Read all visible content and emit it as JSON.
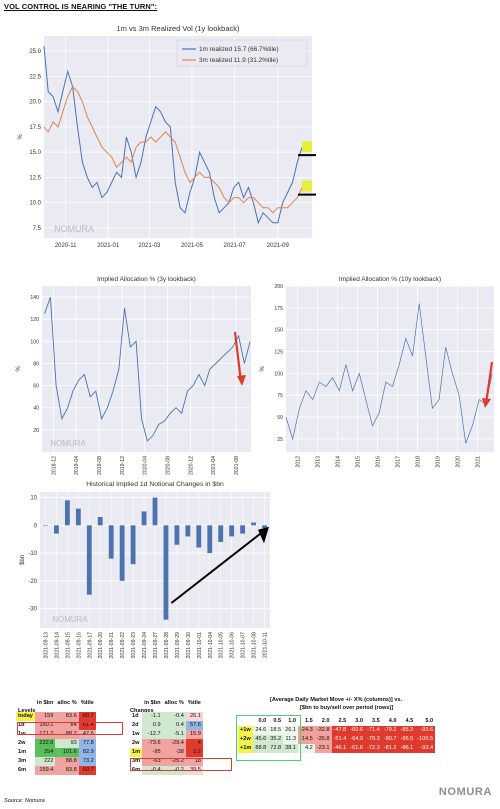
{
  "header": {
    "title": "VOL CONTROL IS NEARING \"THE TURN\":"
  },
  "source": "Source: Nomura",
  "logo": "NOMURA",
  "colors": {
    "blue": "#4c72b0",
    "orange": "#dd8452",
    "bar": "#4c72b0",
    "bg": "#eaeaf2",
    "red": "#e03a2e",
    "green": "#5bbf5b"
  },
  "chart_data": [
    {
      "type": "line",
      "title": "1m vs 3m Realized Vol (1y lookback)",
      "ylabel": "%",
      "ylim": [
        6.5,
        26.5
      ],
      "yticks": [
        7.5,
        10.0,
        12.5,
        15.0,
        17.5,
        20.0,
        22.5,
        25.0
      ],
      "xticks": [
        "2020-11",
        "2021-01",
        "2021-03",
        "2021-05",
        "2021-07",
        "2021-09"
      ],
      "xlim": [
        "2020-10-01",
        "2021-10-20"
      ],
      "legend_position": "top-right",
      "grid": true,
      "series": [
        {
          "name": "1m realized 15.7 (66.7%tile)",
          "color": "#4c72b0",
          "x": [
            "2020-10-01",
            "2020-10-07",
            "2020-10-14",
            "2020-10-21",
            "2020-10-28",
            "2020-11-04",
            "2020-11-11",
            "2020-11-18",
            "2020-11-25",
            "2020-12-02",
            "2020-12-09",
            "2020-12-16",
            "2020-12-23",
            "2020-12-30",
            "2021-01-06",
            "2021-01-13",
            "2021-01-20",
            "2021-01-27",
            "2021-02-03",
            "2021-02-10",
            "2021-02-17",
            "2021-02-24",
            "2021-03-03",
            "2021-03-10",
            "2021-03-17",
            "2021-03-24",
            "2021-03-31",
            "2021-04-07",
            "2021-04-14",
            "2021-04-21",
            "2021-04-28",
            "2021-05-05",
            "2021-05-12",
            "2021-05-19",
            "2021-05-26",
            "2021-06-02",
            "2021-06-09",
            "2021-06-16",
            "2021-06-23",
            "2021-06-30",
            "2021-07-07",
            "2021-07-14",
            "2021-07-21",
            "2021-07-28",
            "2021-08-04",
            "2021-08-11",
            "2021-08-18",
            "2021-08-25",
            "2021-09-01",
            "2021-09-08",
            "2021-09-15",
            "2021-09-22",
            "2021-09-29",
            "2021-10-06",
            "2021-10-13"
          ],
          "y": [
            25.5,
            21.0,
            20.5,
            19.0,
            21.0,
            23.0,
            21.5,
            17.5,
            14.0,
            12.5,
            11.5,
            12.0,
            10.5,
            11.0,
            12.0,
            13.0,
            12.5,
            16.5,
            15.0,
            12.5,
            14.0,
            16.5,
            18.0,
            19.5,
            19.0,
            18.0,
            17.5,
            12.0,
            9.5,
            9.0,
            11.0,
            12.5,
            15.0,
            14.0,
            13.0,
            10.5,
            9.0,
            9.5,
            10.0,
            11.5,
            12.0,
            10.5,
            11.5,
            10.0,
            8.0,
            9.0,
            8.5,
            8.0,
            8.0,
            10.0,
            11.0,
            12.0,
            14.0,
            15.5,
            15.7
          ]
        },
        {
          "name": "3m realized 11.9 (31.2%tile)",
          "color": "#dd8452",
          "x": [
            "2020-10-01",
            "2020-10-07",
            "2020-10-14",
            "2020-10-21",
            "2020-10-28",
            "2020-11-04",
            "2020-11-11",
            "2020-11-18",
            "2020-11-25",
            "2020-12-02",
            "2020-12-09",
            "2020-12-16",
            "2020-12-23",
            "2020-12-30",
            "2021-01-06",
            "2021-01-13",
            "2021-01-20",
            "2021-01-27",
            "2021-02-03",
            "2021-02-10",
            "2021-02-17",
            "2021-02-24",
            "2021-03-03",
            "2021-03-10",
            "2021-03-17",
            "2021-03-24",
            "2021-03-31",
            "2021-04-07",
            "2021-04-14",
            "2021-04-21",
            "2021-04-28",
            "2021-05-05",
            "2021-05-12",
            "2021-05-19",
            "2021-05-26",
            "2021-06-02",
            "2021-06-09",
            "2021-06-16",
            "2021-06-23",
            "2021-06-30",
            "2021-07-07",
            "2021-07-14",
            "2021-07-21",
            "2021-07-28",
            "2021-08-04",
            "2021-08-11",
            "2021-08-18",
            "2021-08-25",
            "2021-09-01",
            "2021-09-08",
            "2021-09-15",
            "2021-09-22",
            "2021-09-29",
            "2021-10-06",
            "2021-10-13"
          ],
          "y": [
            17.5,
            17.0,
            18.0,
            17.5,
            19.0,
            20.5,
            21.5,
            21.0,
            20.0,
            18.5,
            17.5,
            16.5,
            15.5,
            15.0,
            14.5,
            13.5,
            14.0,
            14.5,
            14.0,
            15.5,
            16.0,
            16.0,
            16.5,
            16.0,
            16.5,
            17.0,
            16.5,
            16.0,
            14.5,
            13.0,
            12.0,
            12.5,
            13.0,
            12.5,
            12.5,
            12.0,
            11.5,
            10.5,
            10.0,
            10.5,
            10.5,
            10.0,
            10.5,
            10.5,
            10.0,
            9.5,
            9.5,
            9.0,
            9.5,
            9.5,
            9.5,
            10.0,
            10.5,
            11.5,
            11.9
          ]
        }
      ],
      "annotations": [
        {
          "type": "marker-bar",
          "y": 14.7
        },
        {
          "type": "marker-bar",
          "y": 10.8
        }
      ]
    },
    {
      "type": "line",
      "title": "Implied Allocation % (3y lookback)",
      "ylabel": "%",
      "ylim": [
        0,
        150
      ],
      "yticks": [
        20,
        40,
        60,
        80,
        100,
        120,
        140
      ],
      "xticks": [
        "2018-12",
        "2019-04",
        "2019-08",
        "2019-12",
        "2020-04",
        "2020-08",
        "2020-12",
        "2021-04",
        "2021-08"
      ],
      "xlim": [
        "2018-10-01",
        "2021-10-20"
      ],
      "grid": true,
      "series": [
        {
          "name": "",
          "color": "#4c72b0",
          "x": [
            "2018-10-15",
            "2018-11-15",
            "2018-12-15",
            "2019-01-15",
            "2019-02-15",
            "2019-03-15",
            "2019-04-15",
            "2019-05-15",
            "2019-06-15",
            "2019-07-15",
            "2019-08-15",
            "2019-09-15",
            "2019-10-15",
            "2019-11-15",
            "2019-12-15",
            "2020-01-15",
            "2020-02-15",
            "2020-03-15",
            "2020-04-15",
            "2020-05-15",
            "2020-06-15",
            "2020-07-15",
            "2020-08-15",
            "2020-09-15",
            "2020-10-15",
            "2020-11-15",
            "2020-12-15",
            "2021-01-15",
            "2021-02-15",
            "2021-03-15",
            "2021-04-15",
            "2021-05-15",
            "2021-06-15",
            "2021-07-15",
            "2021-08-15",
            "2021-09-15",
            "2021-10-15"
          ],
          "y": [
            125,
            140,
            60,
            30,
            40,
            55,
            65,
            70,
            50,
            55,
            30,
            40,
            55,
            75,
            130,
            95,
            100,
            30,
            10,
            15,
            25,
            28,
            35,
            40,
            35,
            55,
            60,
            70,
            60,
            75,
            80,
            85,
            90,
            95,
            105,
            80,
            100
          ]
        }
      ]
    },
    {
      "type": "line",
      "title": "Implied Allocation % (10y lookback)",
      "ylabel": "%",
      "ylim": [
        10,
        200
      ],
      "yticks": [
        25,
        50,
        75,
        100,
        125,
        150,
        175,
        200
      ],
      "xticks": [
        "2012",
        "2013",
        "2014",
        "2015",
        "2016",
        "2017",
        "2018",
        "2019",
        "2020",
        "2021"
      ],
      "xlim": [
        "2011-06-01",
        "2021-11-01"
      ],
      "grid": true,
      "series": [
        {
          "name": "",
          "color": "#4c72b0",
          "x": [
            "2011-06-01",
            "2011-10-01",
            "2012-02-01",
            "2012-06-01",
            "2012-10-01",
            "2013-02-01",
            "2013-06-01",
            "2013-10-01",
            "2014-02-01",
            "2014-06-01",
            "2014-10-01",
            "2015-02-01",
            "2015-06-01",
            "2015-10-01",
            "2016-02-01",
            "2016-06-01",
            "2016-10-01",
            "2017-02-01",
            "2017-06-01",
            "2017-10-01",
            "2018-02-01",
            "2018-06-01",
            "2018-10-01",
            "2019-02-01",
            "2019-06-01",
            "2019-10-01",
            "2020-02-01",
            "2020-06-01",
            "2020-10-01",
            "2021-02-01",
            "2021-06-01",
            "2021-10-01"
          ],
          "y": [
            50,
            25,
            60,
            80,
            70,
            90,
            85,
            95,
            80,
            110,
            80,
            100,
            70,
            40,
            55,
            90,
            85,
            110,
            140,
            120,
            180,
            120,
            60,
            70,
            130,
            100,
            75,
            20,
            40,
            70,
            65,
            100
          ]
        }
      ]
    },
    {
      "type": "bar",
      "title": "Historical Implied 1d Notional Changes in $bn",
      "ylabel": "$bn",
      "ylim": [
        -37,
        12
      ],
      "yticks": [
        -30,
        -20,
        -10,
        0,
        10
      ],
      "categories": [
        "2021-09-13",
        "2021-09-14",
        "2021-09-15",
        "2021-09-16",
        "2021-09-17",
        "2021-09-20",
        "2021-09-21",
        "2021-09-22",
        "2021-09-23",
        "2021-09-24",
        "2021-09-27",
        "2021-09-28",
        "2021-09-29",
        "2021-09-30",
        "2021-10-01",
        "2021-10-04",
        "2021-10-05",
        "2021-10-06",
        "2021-10-07",
        "2021-10-08",
        "2021-10-11"
      ],
      "values": [
        0,
        -3,
        9,
        6,
        -25,
        3,
        -12,
        -20,
        -14,
        5,
        10,
        -34,
        -7,
        -4,
        -8,
        -10,
        -6,
        -4,
        -3,
        1,
        -1
      ],
      "grid": true
    }
  ],
  "levels": {
    "title": "Levels",
    "cols": [
      "in $bn",
      "alloc %",
      "%tile"
    ],
    "rows": [
      {
        "label": "today",
        "v": [
          "159",
          "83.6",
          "60.7"
        ],
        "c": [
          "#f0a3a0",
          "#f0a3a0",
          "#e03a2e"
        ]
      },
      {
        "label": "1d",
        "v": [
          "160.1",
          "84",
          "61.4"
        ],
        "c": [
          "#f0a3a0",
          "#f0a3a0",
          "#e03a2e"
        ]
      },
      {
        "label": "1w",
        "v": [
          "171.7",
          "88.7",
          "47.6"
        ],
        "c": [
          "#f0a3a0",
          "#f0a3a0",
          "#e8b0ae"
        ]
      },
      {
        "label": "2w",
        "v": [
          "232.6",
          "93",
          "77.8"
        ],
        "c": [
          "#5bbf5b",
          "#cfe8cf",
          "#8fb6e6"
        ]
      },
      {
        "label": "1m",
        "v": [
          "254",
          "101.6",
          "82.9"
        ],
        "c": [
          "#5bbf5b",
          "#5bbf5b",
          "#8fb6e6"
        ]
      },
      {
        "label": "3m",
        "v": [
          "222",
          "88.8",
          "73.2"
        ],
        "c": [
          "#cfe8cf",
          "#f0a3a0",
          "#8fb6e6"
        ]
      },
      {
        "label": "6m",
        "v": [
          "159.4",
          "83.8",
          "60.7"
        ],
        "c": [
          "#f0a3a0",
          "#f0a3a0",
          "#e03a2e"
        ]
      }
    ]
  },
  "changes": {
    "title": "Changes",
    "cols": [
      "in $bn",
      "alloc %",
      "%tile"
    ],
    "rows": [
      {
        "label": "1d",
        "v": [
          "-1.1",
          "-0.4",
          "26.1"
        ],
        "c": [
          "#cfe8cf",
          "#cfe8cf",
          "#f7d6d5"
        ]
      },
      {
        "label": "2d",
        "v": [
          "0.9",
          "0.4",
          "57.6"
        ],
        "c": [
          "#cfe8cf",
          "#cfe8cf",
          "#8fb6e6"
        ]
      },
      {
        "label": "1w",
        "v": [
          "-12.7",
          "-5.1",
          "15.9"
        ],
        "c": [
          "#cfe8cf",
          "#cfe8cf",
          "#f0a3a0"
        ]
      },
      {
        "label": "2w",
        "v": [
          "-73.6",
          "-29.4",
          "4"
        ],
        "c": [
          "#f0a3a0",
          "#f0a3a0",
          "#e03a2e"
        ]
      },
      {
        "label": "1m",
        "v": [
          "-95",
          "-38",
          "3.2"
        ],
        "c": [
          "#f0a3a0",
          "#f0a3a0",
          "#e03a2e"
        ]
      },
      {
        "label": "3m",
        "v": [
          "-63",
          "-25.2",
          "18"
        ],
        "c": [
          "#f0a3a0",
          "#f0a3a0",
          "#f0a3a0"
        ]
      },
      {
        "label": "6m",
        "v": [
          "-0.4",
          "-0.2",
          "39.5"
        ],
        "c": [
          "#cfe8cf",
          "#cfe8cf",
          "#f7d6d5"
        ]
      }
    ]
  },
  "matrix": {
    "title": "[Average Daily Market Move +/- X% (columns)] vs.",
    "subtitle": "[$bn to buy/sell over period (rows)]",
    "cols": [
      "0.0",
      "0.5",
      "1.0",
      "1.5",
      "2.0",
      "2.5",
      "3.0",
      "3.5",
      "4.0",
      "4.5",
      "5.0"
    ],
    "rows": [
      {
        "label": "+1w",
        "v": [
          "24.6",
          "18.5",
          "26.1",
          "-24.3",
          "-32.8",
          "-47.8",
          "-60.6",
          "-71.4",
          "-79.2",
          "-85.3",
          "-93.6"
        ]
      },
      {
        "label": "+2w",
        "v": [
          "45.6",
          "35.2",
          "11.3",
          "-14.5",
          "-35.8",
          "-51.4",
          "-64.9",
          "-79.3",
          "-90.7",
          "-96.5",
          "-100.5"
        ]
      },
      {
        "label": "+1m",
        "v": [
          "88.8",
          "72.8",
          "38.1",
          "4.2",
          "-23.1",
          "-46.1",
          "-61.6",
          "-72.3",
          "-81.2",
          "-86.1",
          "-93.4"
        ]
      }
    ]
  }
}
